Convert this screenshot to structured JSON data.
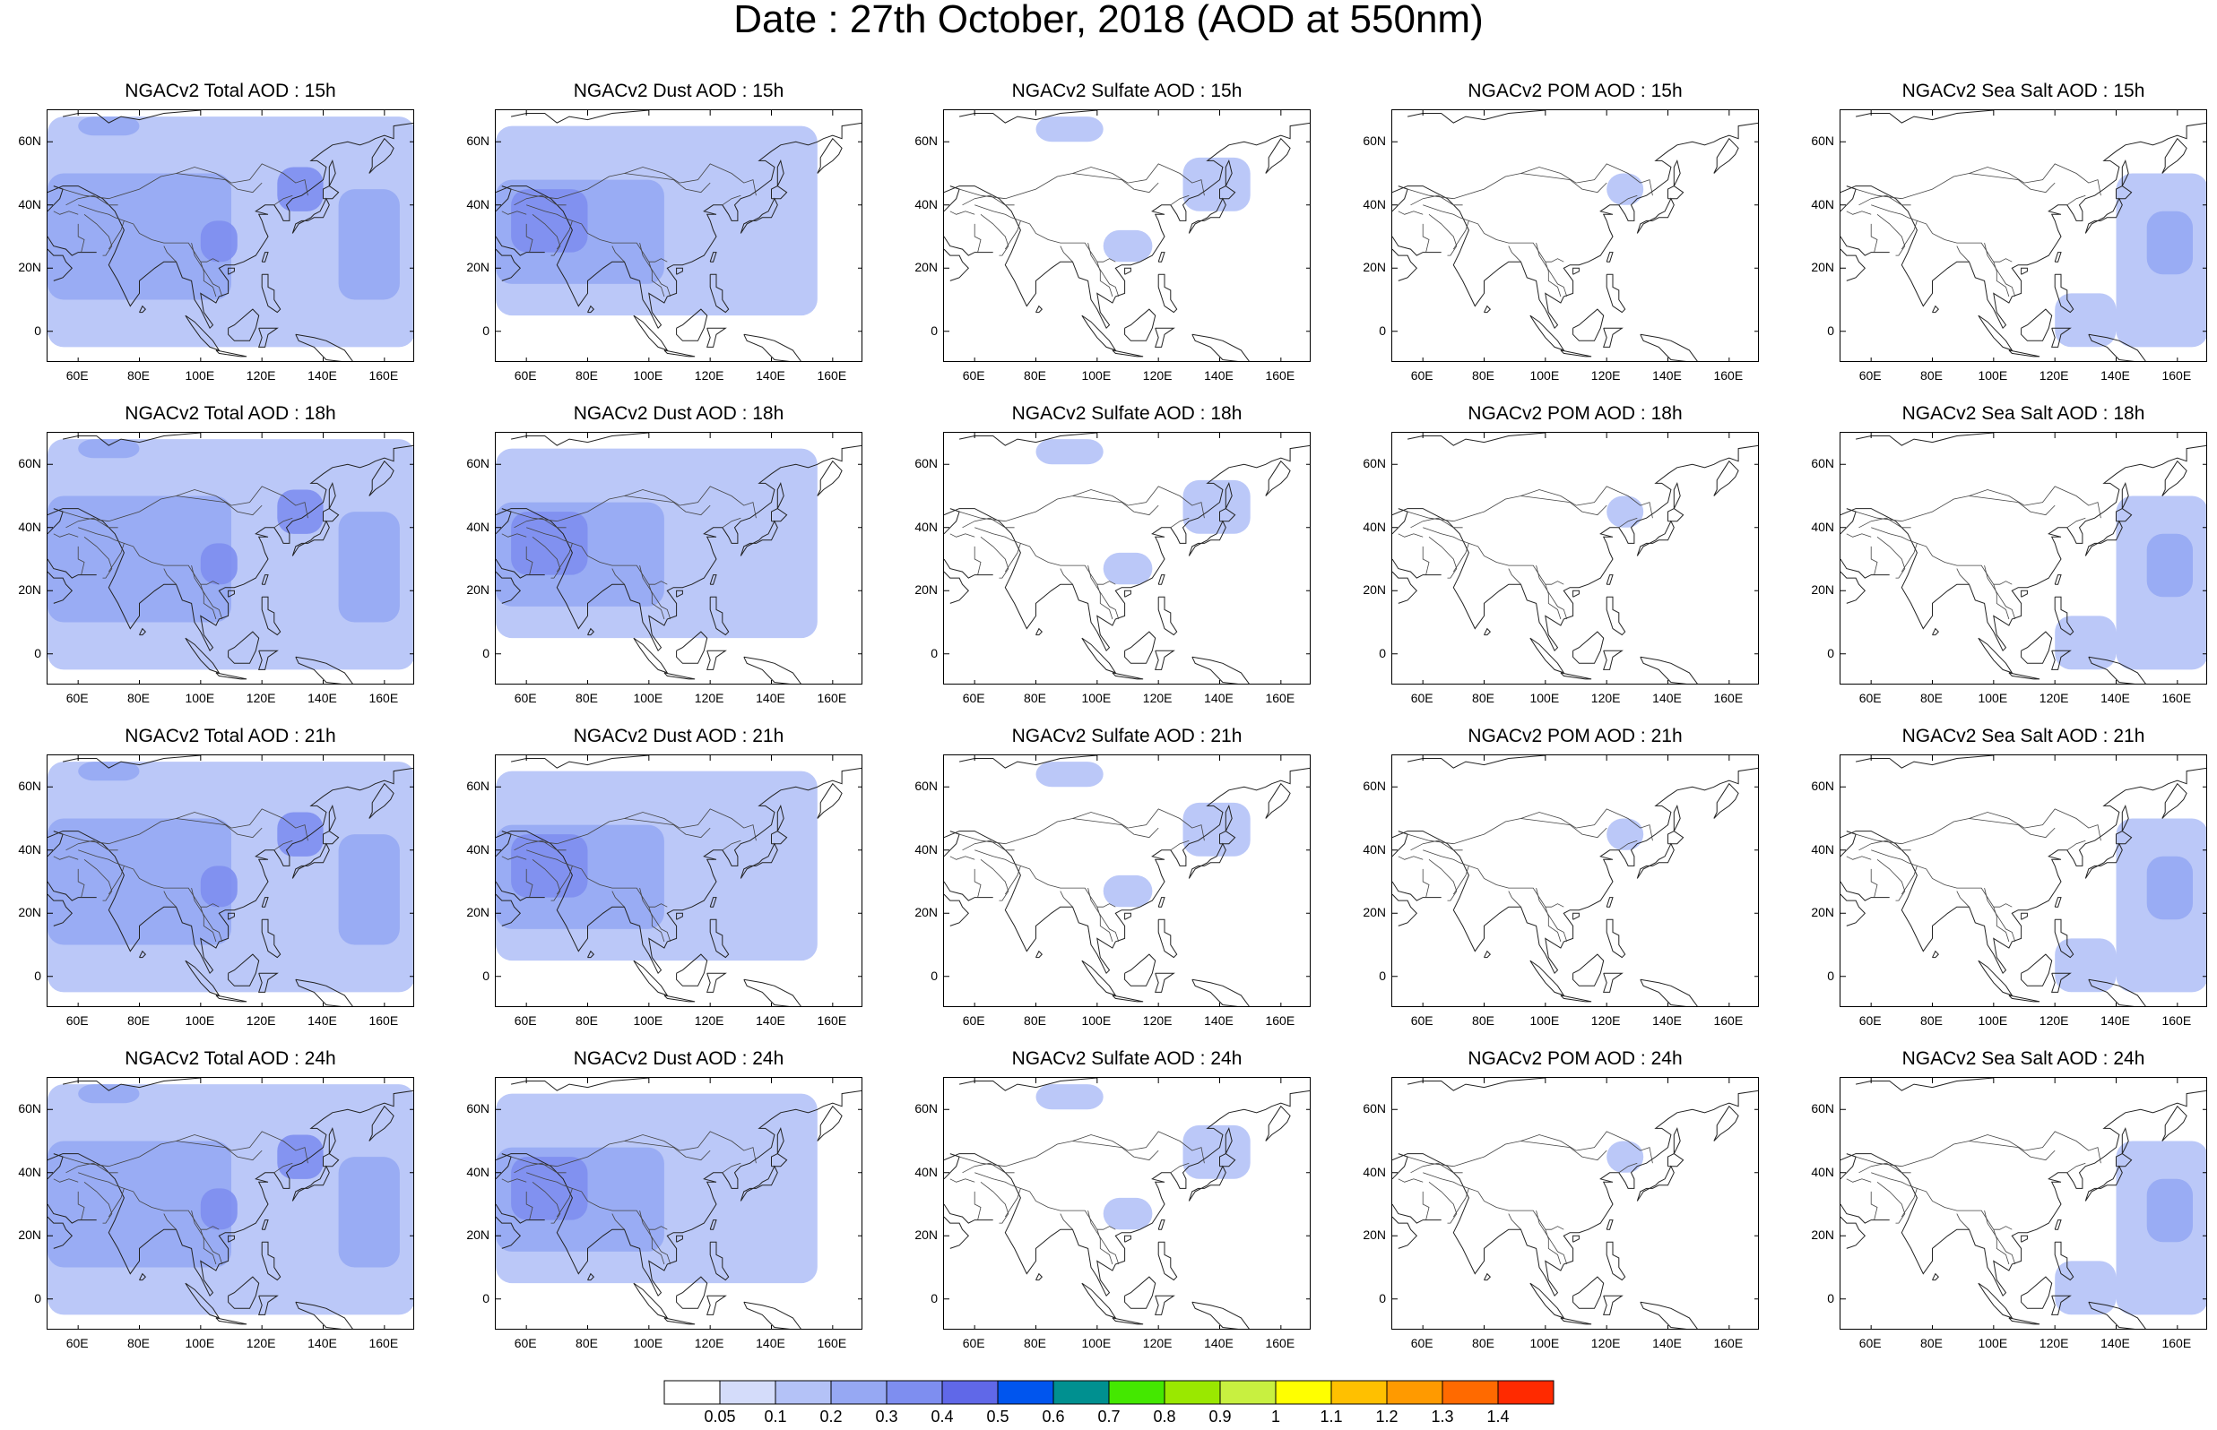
{
  "title": "Date : 27th October, 2018 (AOD at 550nm)",
  "columns": [
    "Total",
    "Dust",
    "Sulfate",
    "POM",
    "Sea Salt"
  ],
  "rows": [
    "15h",
    "18h",
    "21h",
    "24h"
  ],
  "panels": [
    [
      "NGACv2 Total AOD : 15h",
      "NGACv2 Dust AOD : 15h",
      "NGACv2 Sulfate AOD : 15h",
      "NGACv2 POM AOD : 15h",
      "NGACv2 Sea Salt AOD : 15h"
    ],
    [
      "NGACv2 Total AOD : 18h",
      "NGACv2 Dust AOD : 18h",
      "NGACv2 Sulfate AOD : 18h",
      "NGACv2 POM AOD : 18h",
      "NGACv2 Sea Salt AOD : 18h"
    ],
    [
      "NGACv2 Total AOD : 21h",
      "NGACv2 Dust AOD : 21h",
      "NGACv2 Sulfate AOD : 21h",
      "NGACv2 POM AOD : 21h",
      "NGACv2 Sea Salt AOD : 21h"
    ],
    [
      "NGACv2 Total AOD : 24h",
      "NGACv2 Dust AOD : 24h",
      "NGACv2 Sulfate AOD : 24h",
      "NGACv2 POM AOD : 24h",
      "NGACv2 Sea Salt  AOD : 24h"
    ]
  ],
  "map": {
    "lon_range": [
      50,
      170
    ],
    "lat_range": [
      -10,
      70
    ],
    "lat_ticks": [
      {
        "value": 60,
        "label": "60N"
      },
      {
        "value": 40,
        "label": "40N"
      },
      {
        "value": 20,
        "label": "20N"
      },
      {
        "value": 0,
        "label": "0"
      }
    ],
    "lon_ticks": [
      {
        "value": 60,
        "label": "60E"
      },
      {
        "value": 80,
        "label": "80E"
      },
      {
        "value": 100,
        "label": "100E"
      },
      {
        "value": 120,
        "label": "120E"
      },
      {
        "value": 140,
        "label": "140E"
      },
      {
        "value": 160,
        "label": "160E"
      }
    ]
  },
  "colorbar": {
    "labels": [
      "0.05",
      "0.1",
      "0.2",
      "0.3",
      "0.4",
      "0.5",
      "0.6",
      "0.7",
      "0.8",
      "0.9",
      "1",
      "1.1",
      "1.2",
      "1.3",
      "1.4"
    ],
    "colors": [
      "#ffffff",
      "#d4dcfa",
      "#b4c2f7",
      "#96a8f3",
      "#7e8ef0",
      "#6068e8",
      "#0055ee",
      "#009090",
      "#44e800",
      "#9ae800",
      "#c8f040",
      "#ffff00",
      "#ffc000",
      "#ff9a00",
      "#ff6a00",
      "#ff2a00"
    ]
  },
  "chart_data": {
    "type": "heatmap",
    "title": "Date : 27th October, 2018 (AOD at 550nm)",
    "variable": "AOD at 550nm",
    "lon_range": [
      50,
      170
    ],
    "lat_range": [
      -10,
      70
    ],
    "contour_levels": [
      0.05,
      0.1,
      0.2,
      0.3,
      0.4,
      0.5,
      0.6,
      0.7,
      0.8,
      0.9,
      1,
      1.1,
      1.2,
      1.3,
      1.4
    ],
    "fields": {
      "Total": [
        {
          "lon": [
            50,
            170
          ],
          "lat": [
            -5,
            68
          ],
          "value": 0.1
        },
        {
          "lon": [
            50,
            110
          ],
          "lat": [
            10,
            50
          ],
          "value": 0.2
        },
        {
          "lon": [
            100,
            112
          ],
          "lat": [
            22,
            35
          ],
          "value": 0.3
        },
        {
          "lon": [
            125,
            140
          ],
          "lat": [
            38,
            52
          ],
          "value": 0.3
        },
        {
          "lon": [
            145,
            165
          ],
          "lat": [
            10,
            45
          ],
          "value": 0.2
        },
        {
          "lon": [
            60,
            80
          ],
          "lat": [
            62,
            68
          ],
          "value": 0.2
        }
      ],
      "Dust": [
        {
          "lon": [
            50,
            155
          ],
          "lat": [
            5,
            65
          ],
          "value": 0.1
        },
        {
          "lon": [
            50,
            105
          ],
          "lat": [
            15,
            48
          ],
          "value": 0.2
        },
        {
          "lon": [
            55,
            80
          ],
          "lat": [
            25,
            45
          ],
          "value": 0.3
        }
      ],
      "Sulfate": [
        {
          "lon": [
            80,
            102
          ],
          "lat": [
            60,
            68
          ],
          "value": 0.1
        },
        {
          "lon": [
            128,
            150
          ],
          "lat": [
            38,
            55
          ],
          "value": 0.1
        },
        {
          "lon": [
            102,
            118
          ],
          "lat": [
            22,
            32
          ],
          "value": 0.1
        }
      ],
      "POM": [
        {
          "lon": [
            120,
            132
          ],
          "lat": [
            40,
            50
          ],
          "value": 0.1
        }
      ],
      "Sea Salt": [
        {
          "lon": [
            140,
            170
          ],
          "lat": [
            -5,
            50
          ],
          "value": 0.1
        },
        {
          "lon": [
            150,
            165
          ],
          "lat": [
            18,
            38
          ],
          "value": 0.2
        },
        {
          "lon": [
            120,
            140
          ],
          "lat": [
            -5,
            12
          ],
          "value": 0.1
        }
      ]
    }
  }
}
